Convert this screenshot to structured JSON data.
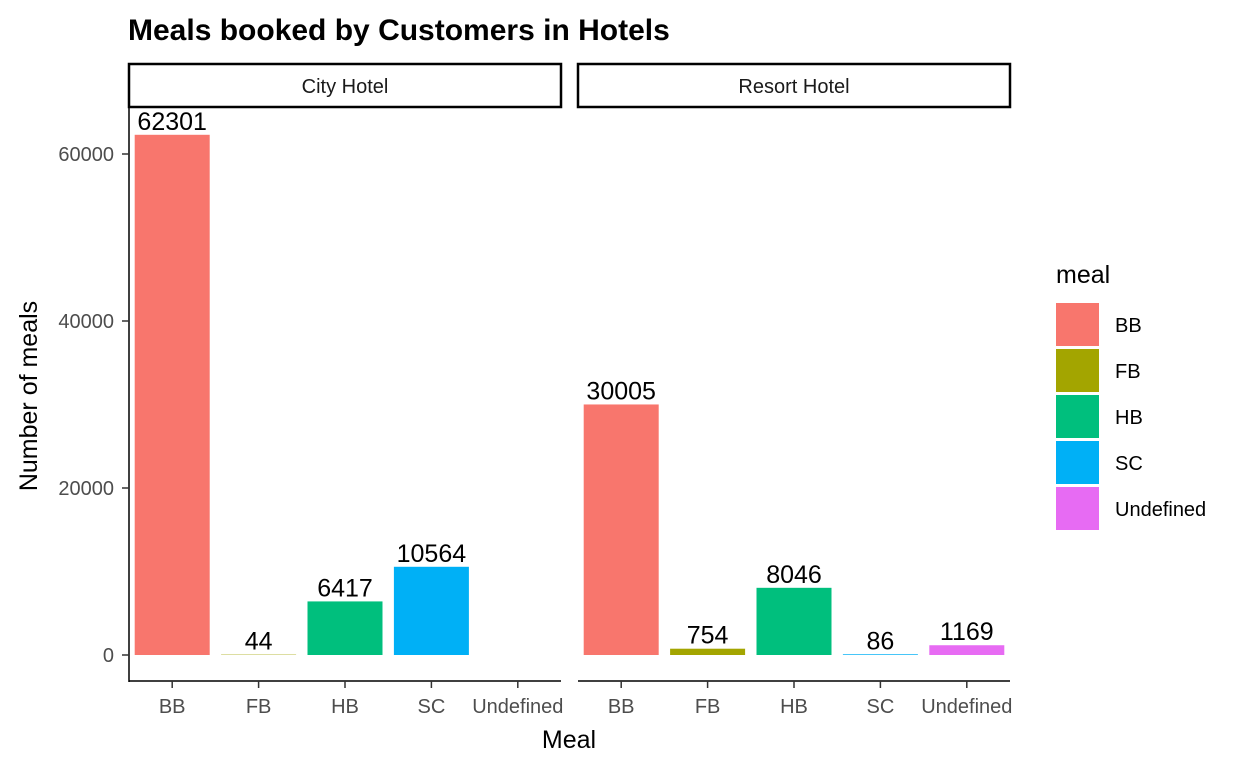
{
  "chart_data": {
    "type": "bar",
    "title": "Meals booked by Customers in Hotels",
    "xlabel": "Meal",
    "ylabel": "Number of meals",
    "ylim": [
      0,
      65000
    ],
    "yticks": [
      0,
      20000,
      40000,
      60000
    ],
    "ytick_labels": [
      "0",
      "20000",
      "40000",
      "60000"
    ],
    "categories": [
      "BB",
      "FB",
      "HB",
      "SC",
      "Undefined"
    ],
    "facets": [
      {
        "label": "City Hotel",
        "values": [
          62301,
          44,
          6417,
          10564,
          null
        ]
      },
      {
        "label": "Resort Hotel",
        "values": [
          30005,
          754,
          8046,
          86,
          1169
        ]
      }
    ],
    "legend": {
      "title": "meal",
      "position": "right",
      "items": [
        {
          "label": "BB",
          "color": "#F8766D"
        },
        {
          "label": "FB",
          "color": "#A3A500"
        },
        {
          "label": "HB",
          "color": "#00BF7D"
        },
        {
          "label": "SC",
          "color": "#00B0F6"
        },
        {
          "label": "Undefined",
          "color": "#E76BF3"
        }
      ]
    },
    "grid": false
  }
}
